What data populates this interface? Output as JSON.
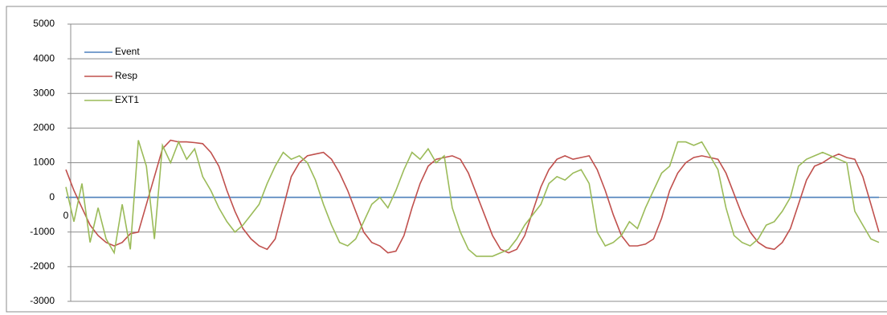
{
  "chart_data": {
    "type": "line",
    "x": [
      0,
      1,
      2,
      3,
      4,
      5,
      6,
      7,
      8,
      9,
      10,
      11,
      12,
      13,
      14,
      15,
      16,
      17,
      18,
      19,
      20,
      21,
      22,
      23,
      24,
      25,
      26,
      27,
      28,
      29,
      30,
      31,
      32,
      33,
      34,
      35,
      36,
      37,
      38,
      39,
      40,
      41,
      42,
      43,
      44,
      45,
      46,
      47,
      48,
      49,
      50,
      51,
      52,
      53,
      54,
      55,
      56,
      57,
      58,
      59,
      60,
      61,
      62,
      63,
      64,
      65,
      66,
      67,
      68,
      69,
      70,
      71,
      72,
      73,
      74,
      75,
      76,
      77,
      78,
      79,
      80,
      81,
      82,
      83,
      84,
      85,
      86,
      87,
      88,
      89,
      90,
      91,
      92,
      93,
      94,
      95,
      96,
      97,
      98,
      99,
      100,
      101
    ],
    "xlim": [
      0,
      102
    ],
    "xticks": [
      0
    ],
    "ylim": [
      -3000,
      5000
    ],
    "yticks": [
      -3000,
      -2000,
      -1000,
      0,
      1000,
      2000,
      3000,
      4000,
      5000
    ],
    "grid": true,
    "legend": "top-left",
    "series": [
      {
        "name": "Event",
        "color": "#4f81bd",
        "values": [
          0,
          0,
          0,
          0,
          0,
          0,
          0,
          0,
          0,
          0,
          0,
          0,
          0,
          0,
          0,
          0,
          0,
          0,
          0,
          0,
          0,
          0,
          0,
          0,
          0,
          0,
          0,
          0,
          0,
          0,
          0,
          0,
          0,
          0,
          0,
          0,
          0,
          0,
          0,
          0,
          0,
          0,
          0,
          0,
          0,
          0,
          0,
          0,
          0,
          0,
          0,
          0,
          0,
          0,
          0,
          0,
          0,
          0,
          0,
          0,
          0,
          0,
          0,
          0,
          0,
          0,
          0,
          0,
          0,
          0,
          0,
          0,
          0,
          0,
          0,
          0,
          0,
          0,
          0,
          0,
          0,
          0,
          0,
          0,
          0,
          0,
          0,
          0,
          0,
          0,
          0,
          0,
          0,
          0,
          0,
          0,
          0,
          0,
          0,
          0,
          0,
          0
        ]
      },
      {
        "name": "Resp",
        "color": "#c0504d",
        "values": [
          800,
          200,
          -300,
          -800,
          -1100,
          -1300,
          -1400,
          -1300,
          -1050,
          -1000,
          -200,
          600,
          1400,
          1650,
          1600,
          1600,
          1580,
          1550,
          1300,
          900,
          200,
          -400,
          -900,
          -1200,
          -1400,
          -1500,
          -1200,
          -300,
          600,
          1000,
          1200,
          1250,
          1300,
          1100,
          700,
          200,
          -400,
          -1000,
          -1300,
          -1400,
          -1600,
          -1550,
          -1100,
          -300,
          400,
          900,
          1100,
          1150,
          1200,
          1100,
          700,
          100,
          -500,
          -1100,
          -1500,
          -1600,
          -1500,
          -1100,
          -400,
          300,
          800,
          1100,
          1200,
          1100,
          1150,
          1200,
          800,
          200,
          -500,
          -1100,
          -1400,
          -1400,
          -1350,
          -1200,
          -600,
          200,
          700,
          1000,
          1150,
          1200,
          1150,
          1100,
          700,
          100,
          -500,
          -1000,
          -1300,
          -1450,
          -1500,
          -1300,
          -900,
          -200,
          500,
          900,
          1000,
          1150,
          1250,
          1150,
          1100,
          600,
          -200,
          -1000
        ]
      },
      {
        "name": "EXT1",
        "color": "#9bbb59",
        "values": [
          300,
          -700,
          400,
          -1300,
          -300,
          -1200,
          -1600,
          -200,
          -1500,
          1650,
          900,
          -1200,
          1500,
          1000,
          1600,
          1100,
          1400,
          600,
          200,
          -300,
          -700,
          -1000,
          -800,
          -500,
          -200,
          400,
          900,
          1300,
          1100,
          1200,
          1000,
          500,
          -200,
          -800,
          -1300,
          -1400,
          -1200,
          -700,
          -200,
          0,
          -300,
          200,
          800,
          1300,
          1100,
          1400,
          1000,
          1200,
          -300,
          -1000,
          -1500,
          -1700,
          -1700,
          -1700,
          -1600,
          -1500,
          -1200,
          -800,
          -500,
          -200,
          400,
          600,
          500,
          700,
          800,
          400,
          -1000,
          -1400,
          -1300,
          -1100,
          -700,
          -900,
          -300,
          200,
          700,
          900,
          1600,
          1600,
          1500,
          1600,
          1200,
          800,
          -300,
          -1100,
          -1300,
          -1400,
          -1200,
          -800,
          -700,
          -400,
          0,
          900,
          1100,
          1200,
          1300,
          1200,
          1100,
          1000,
          -400,
          -800,
          -1200,
          -1300
        ]
      }
    ]
  }
}
